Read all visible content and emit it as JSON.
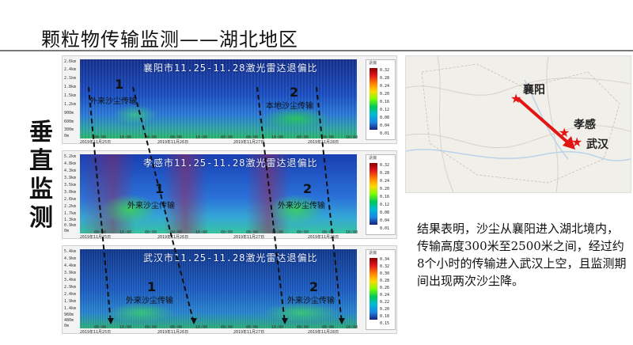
{
  "slide": {
    "title": "颗粒物传输监测——湖北地区",
    "side_label": "垂直监测"
  },
  "panels": [
    {
      "title": "襄阳市11.25-11.28激光雷达退偏比",
      "y_ticks": [
        "2.6km",
        "2.4km",
        "2.1km",
        "1.8km",
        "1.5km",
        "1.2km",
        "900m",
        "600m",
        "300m",
        "0m"
      ],
      "x_ticks": [
        "08:00",
        "16:00",
        "00:00",
        "08:00",
        "16:00",
        "00:00",
        "08:00",
        "16:00",
        "00:00",
        "08:00",
        "16:00"
      ],
      "date_ticks": [
        "2019年11月25日",
        "2019年11月26日",
        "2019年11月27日",
        "2019年11月28日"
      ],
      "colorbar_title": "退偏",
      "colorbar_ticks": [
        "0.32",
        "0.28",
        "0.24",
        "0.20",
        "0.16",
        "0.12",
        "0.08",
        "0.04",
        "0.01"
      ],
      "annotations": [
        {
          "num": "1",
          "text": "外来沙尘传输"
        },
        {
          "num": "2",
          "text": "本地沙尘传输"
        }
      ]
    },
    {
      "title": "孝感市11.25-11.28激光雷达退偏比",
      "y_ticks": [
        "5.2km",
        "4.8km",
        "4.3km",
        "3.9km",
        "3.5km",
        "3.0km",
        "2.6km",
        "2.2km",
        "1.7km",
        "1.3km",
        "0.9km",
        "0m"
      ],
      "x_ticks": [
        "08:00",
        "16:00",
        "00:00",
        "08:00",
        "16:00",
        "00:00",
        "08:00",
        "16:00",
        "00:00",
        "08:00",
        "16:00"
      ],
      "date_ticks": [
        "2019年11月25日",
        "2019年11月26日",
        "2019年11月27日",
        "2019年11月28日"
      ],
      "colorbar_title": "退偏",
      "colorbar_ticks": [
        "0.32",
        "0.28",
        "0.24",
        "0.20",
        "0.16",
        "0.12",
        "0.08",
        "0.04",
        "0.01"
      ],
      "annotations": [
        {
          "num": "1",
          "text": "外来沙尘传输"
        },
        {
          "num": "2",
          "text": "外来沙尘传输"
        }
      ]
    },
    {
      "title": "武汉市11.25-11.28激光雷达退偏比",
      "y_ticks": [
        "5.4km",
        "4.9km",
        "4.4km",
        "3.9km",
        "3.4km",
        "2.9km",
        "2.4km",
        "1.9km",
        "1.4km",
        "960m",
        "480m",
        "0m"
      ],
      "x_ticks": [
        "08:00",
        "16:00",
        "00:00",
        "08:00",
        "16:00",
        "00:00",
        "08:00",
        "16:00",
        "00:00",
        "08:00",
        "16:00"
      ],
      "date_ticks": [
        "2019年11月25日",
        "2019年11月26日",
        "2019年11月27日",
        "2019年11月28日"
      ],
      "colorbar_title": "退偏",
      "colorbar_ticks": [
        "0.34",
        "0.32",
        "0.30",
        "0.28",
        "0.26",
        "0.24",
        "0.22",
        "0.20",
        "0.18",
        "0.15"
      ],
      "annotations": [
        {
          "num": "1",
          "text": "外来沙尘传输"
        },
        {
          "num": "2",
          "text": "外来沙尘传输"
        }
      ]
    }
  ],
  "map": {
    "cities": [
      "襄阳",
      "孝感",
      "武汉"
    ],
    "star_color": "#e31414",
    "arrow_color": "#e31414"
  },
  "result_text": "结果表明，沙尘从襄阳进入湖北境内，传输高度300米至2500米之间，经过约8个小时的传输进入武汉上空，且监测期间出现两次沙尘降。"
}
